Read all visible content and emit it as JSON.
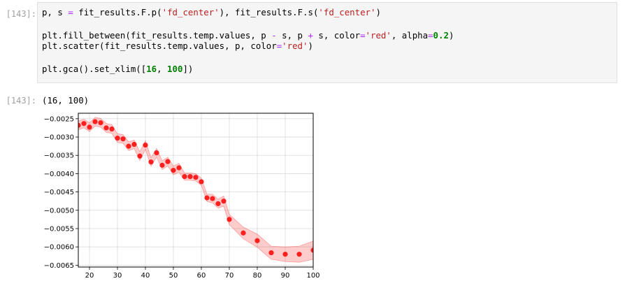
{
  "input_cell": {
    "prompt": "[143]:",
    "lines": [
      [
        {
          "t": "p, s ",
          "c": "nm"
        },
        {
          "t": "=",
          "c": "kw-op"
        },
        {
          "t": " fit_results.F.p(",
          "c": "nm"
        },
        {
          "t": "'fd_center'",
          "c": "str"
        },
        {
          "t": "), fit_results.F.s(",
          "c": "nm"
        },
        {
          "t": "'fd_center'",
          "c": "str"
        },
        {
          "t": ")",
          "c": "nm"
        }
      ],
      [],
      [
        {
          "t": "plt.fill_between(fit_results.temp.values, p ",
          "c": "nm"
        },
        {
          "t": "-",
          "c": "kw-op"
        },
        {
          "t": " s, p ",
          "c": "nm"
        },
        {
          "t": "+",
          "c": "kw-op"
        },
        {
          "t": " s, color",
          "c": "nm"
        },
        {
          "t": "=",
          "c": "kw-op"
        },
        {
          "t": "'red'",
          "c": "str"
        },
        {
          "t": ", alpha",
          "c": "nm"
        },
        {
          "t": "=",
          "c": "kw-op"
        },
        {
          "t": "0.2",
          "c": "num"
        },
        {
          "t": ")",
          "c": "nm"
        }
      ],
      [
        {
          "t": "plt.scatter(fit_results.temp.values, p, color",
          "c": "nm"
        },
        {
          "t": "=",
          "c": "kw-op"
        },
        {
          "t": "'red'",
          "c": "str"
        },
        {
          "t": ")",
          "c": "nm"
        }
      ],
      [],
      [
        {
          "t": "plt.gca().set_xlim([",
          "c": "nm"
        },
        {
          "t": "16",
          "c": "num"
        },
        {
          "t": ", ",
          "c": "nm"
        },
        {
          "t": "100",
          "c": "num"
        },
        {
          "t": "])",
          "c": "nm"
        }
      ]
    ]
  },
  "output_cell": {
    "prompt": "[143]:",
    "text": "(16, 100)"
  },
  "colors": {
    "marker": "#ff0000",
    "band": "#ff0000",
    "band_alpha": 0.2,
    "grid": "#d9d9d9"
  },
  "chart_data": {
    "type": "scatter",
    "xlim": [
      16,
      100
    ],
    "ylim": [
      -0.00655,
      -0.00235
    ],
    "grid": true,
    "x_ticks": [
      20,
      30,
      40,
      50,
      60,
      70,
      80,
      90,
      100
    ],
    "x_tick_labels": [
      "20",
      "30",
      "40",
      "50",
      "60",
      "70",
      "80",
      "90",
      "100"
    ],
    "y_ticks": [
      -0.0025,
      -0.003,
      -0.0035,
      -0.004,
      -0.0045,
      -0.005,
      -0.0055,
      -0.006,
      -0.0065
    ],
    "y_tick_labels": [
      "−0.0025",
      "−0.0030",
      "−0.0035",
      "−0.0040",
      "−0.0045",
      "−0.0050",
      "−0.0055",
      "−0.0060",
      "−0.0065"
    ],
    "series": [
      {
        "x": [
          16,
          18,
          20,
          22,
          24,
          26,
          28,
          30,
          32,
          34,
          36,
          38,
          40,
          42,
          44,
          46,
          48,
          50,
          52,
          54,
          56,
          58,
          60,
          62,
          64,
          66,
          68,
          70,
          75,
          80,
          85,
          90,
          95,
          100
        ],
        "y": [
          -0.00268,
          -0.00263,
          -0.00273,
          -0.00258,
          -0.00261,
          -0.00275,
          -0.00278,
          -0.00303,
          -0.00305,
          -0.00325,
          -0.0032,
          -0.00352,
          -0.00322,
          -0.00368,
          -0.00343,
          -0.00377,
          -0.00367,
          -0.00391,
          -0.00384,
          -0.00408,
          -0.00408,
          -0.0041,
          -0.00422,
          -0.00466,
          -0.00468,
          -0.00482,
          -0.00475,
          -0.00525,
          -0.00562,
          -0.00583,
          -0.00616,
          -0.0062,
          -0.0062,
          -0.00609
        ],
        "err": [
          0.00012,
          0.00012,
          0.00012,
          0.00012,
          0.00012,
          0.00012,
          0.00012,
          0.00012,
          0.00012,
          0.00012,
          0.00012,
          0.00012,
          0.00012,
          0.00012,
          0.00012,
          0.00012,
          0.00012,
          0.00012,
          0.00012,
          0.0001,
          0.0001,
          0.0001,
          0.0001,
          0.0001,
          0.00012,
          0.00012,
          0.00014,
          0.00014,
          0.00016,
          0.00018,
          0.00018,
          0.0002,
          0.00022,
          0.00025
        ]
      }
    ]
  }
}
